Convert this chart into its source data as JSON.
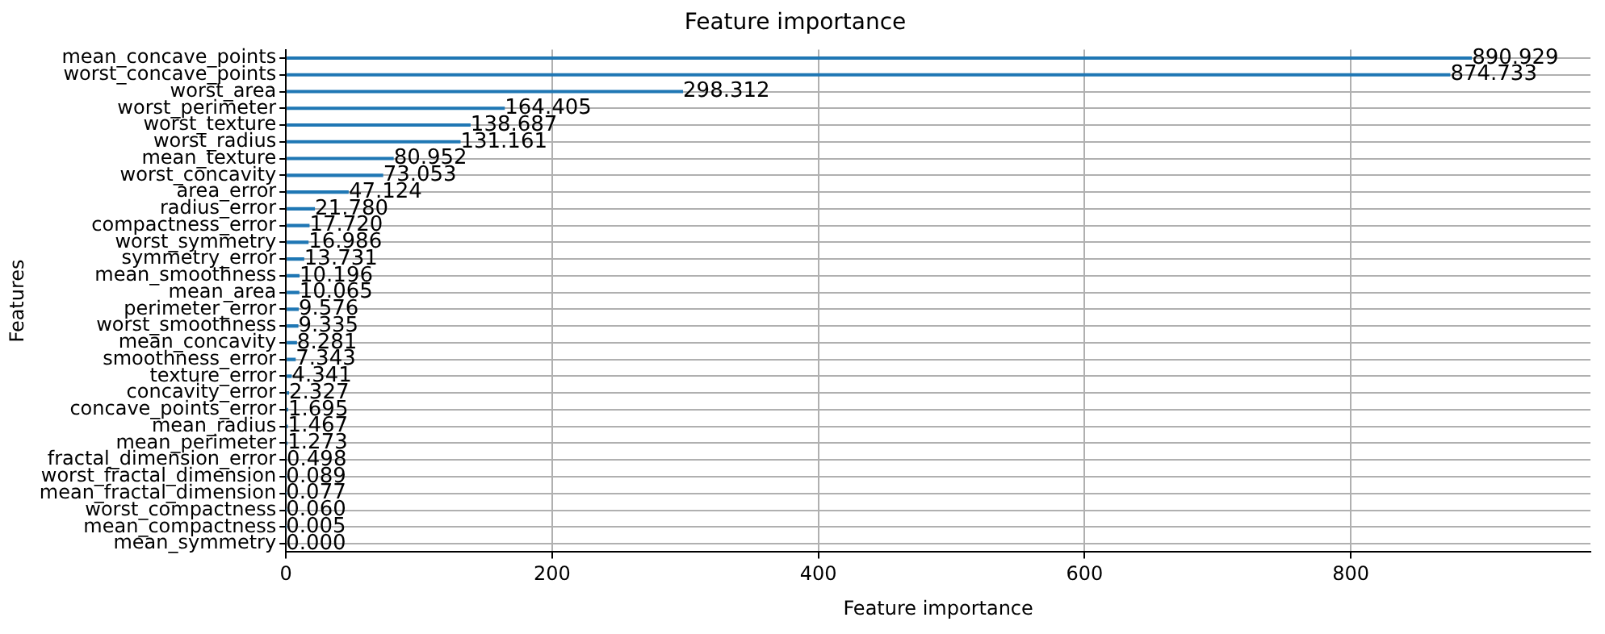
{
  "chart_data": {
    "type": "bar",
    "orientation": "horizontal",
    "title": "Feature importance",
    "xlabel": "Feature importance",
    "ylabel": "Features",
    "categories": [
      "mean_concave_points",
      "worst_concave_points",
      "worst_area",
      "worst_perimeter",
      "worst_texture",
      "worst_radius",
      "mean_texture",
      "worst_concavity",
      "area_error",
      "radius_error",
      "compactness_error",
      "worst_symmetry",
      "symmetry_error",
      "mean_smoothness",
      "mean_area",
      "perimeter_error",
      "worst_smoothness",
      "mean_concavity",
      "smoothness_error",
      "texture_error",
      "concavity_error",
      "concave_points_error",
      "mean_radius",
      "mean_perimeter",
      "fractal_dimension_error",
      "worst_fractal_dimension",
      "mean_fractal_dimension",
      "worst_compactness",
      "mean_compactness",
      "mean_symmetry"
    ],
    "values": [
      890.929,
      874.733,
      298.312,
      164.405,
      138.687,
      131.161,
      80.952,
      73.053,
      47.124,
      21.78,
      17.72,
      16.986,
      13.731,
      10.196,
      10.065,
      9.576,
      9.335,
      8.281,
      7.343,
      4.341,
      2.327,
      1.695,
      1.467,
      1.273,
      0.498,
      0.089,
      0.077,
      0.06,
      0.005,
      0
    ],
    "value_labels": [
      "890.929",
      "874.733",
      "298.312",
      "164.405",
      "138.687",
      "131.161",
      "80.952",
      "73.053",
      "47.124",
      "21.780",
      "17.720",
      "16.986",
      "13.731",
      "10.196",
      "10.065",
      "9.576",
      "9.335",
      "8.281",
      "7.343",
      "4.341",
      "2.327",
      "1.695",
      "1.467",
      "1.273",
      "0.498",
      "0.089",
      "0.077",
      "0.060",
      "0.005",
      "0.000"
    ],
    "color": "#1f77b4",
    "xlim": [
      0,
      980
    ],
    "xticks": [
      0,
      200,
      400,
      600,
      800
    ],
    "grid": true,
    "legend": false
  }
}
